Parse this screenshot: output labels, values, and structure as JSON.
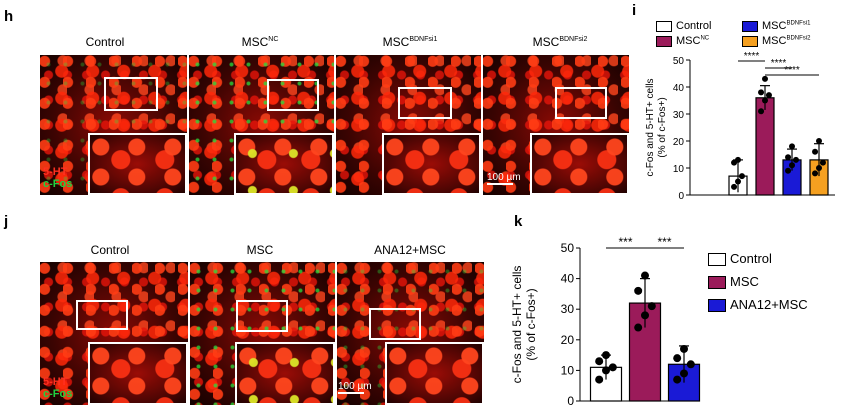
{
  "panels": {
    "h": {
      "letter": "h",
      "columns": [
        {
          "base": "Control",
          "sup": ""
        },
        {
          "base": "MSC",
          "sup": "NC"
        },
        {
          "base": "MSC",
          "sup": "BDNFsi1"
        },
        {
          "base": "MSC",
          "sup": "BDNFsi2"
        }
      ],
      "stain_5ht": "5-HT",
      "stain_cfos": "c-Fos",
      "scalebar": "100 µm"
    },
    "j": {
      "letter": "j",
      "columns": [
        {
          "base": "Control",
          "sup": ""
        },
        {
          "base": "MSC",
          "sup": ""
        },
        {
          "base": "ANA12+MSC",
          "sup": ""
        }
      ],
      "stain_5ht": "5-HT",
      "stain_cfos": "c-Fos",
      "scalebar": "100 µm"
    }
  },
  "chart_data": [
    {
      "panel_letter": "i",
      "type": "bar",
      "ylabel_line1": "c-Fos and 5-HT+ cells",
      "ylabel_line2": "(% of c-Fos+)",
      "ylim": [
        0,
        50
      ],
      "yticks": [
        "0",
        "10",
        "20",
        "30",
        "40",
        "50"
      ],
      "legend": [
        {
          "base": "Control",
          "sup": "",
          "color": "#ffffff"
        },
        {
          "base": "MSC",
          "sup": "NC",
          "color": "#9b1b5a"
        },
        {
          "base": "MSC",
          "sup": "BDNFsi1",
          "color": "#1a1ad6"
        },
        {
          "base": "MSC",
          "sup": "BDNFsi2",
          "color": "#f5a020"
        }
      ],
      "categories": [
        "Control",
        "MSCNC",
        "MSCBDNFsi1",
        "MSCBDNFsi2"
      ],
      "values": [
        7,
        36,
        13,
        13
      ],
      "errors": [
        6,
        4.5,
        4,
        6
      ],
      "points": [
        [
          3,
          5,
          7,
          12,
          13
        ],
        [
          31,
          35,
          37,
          38,
          43
        ],
        [
          9,
          11,
          13,
          14,
          18
        ],
        [
          8,
          10,
          12,
          16,
          20
        ]
      ],
      "significance": [
        {
          "from": 0,
          "to": 1,
          "text": "****"
        },
        {
          "from": 1,
          "to": 2,
          "text": "****"
        },
        {
          "from": 1,
          "to": 3,
          "text": "****"
        }
      ]
    },
    {
      "panel_letter": "k",
      "type": "bar",
      "ylabel_line1": "c-Fos and 5-HT+ cells",
      "ylabel_line2": "(% of c-Fos+)",
      "ylim": [
        0,
        50
      ],
      "yticks": [
        "0",
        "10",
        "20",
        "30",
        "40",
        "50"
      ],
      "legend": [
        {
          "base": "Control",
          "sup": "",
          "color": "#ffffff"
        },
        {
          "base": "MSC",
          "sup": "",
          "color": "#9b1b5a"
        },
        {
          "base": "ANA12+MSC",
          "sup": "",
          "color": "#1a1ad6"
        }
      ],
      "categories": [
        "Control",
        "MSC",
        "ANA12+MSC"
      ],
      "values": [
        11,
        32,
        12
      ],
      "errors": [
        4,
        8,
        6
      ],
      "points": [
        [
          7,
          10,
          11,
          13,
          15
        ],
        [
          24,
          28,
          31,
          36,
          41
        ],
        [
          7,
          9,
          12,
          14,
          17
        ]
      ],
      "significance": [
        {
          "from": 0,
          "to": 1,
          "text": "***"
        },
        {
          "from": 1,
          "to": 2,
          "text": "***"
        }
      ]
    }
  ]
}
